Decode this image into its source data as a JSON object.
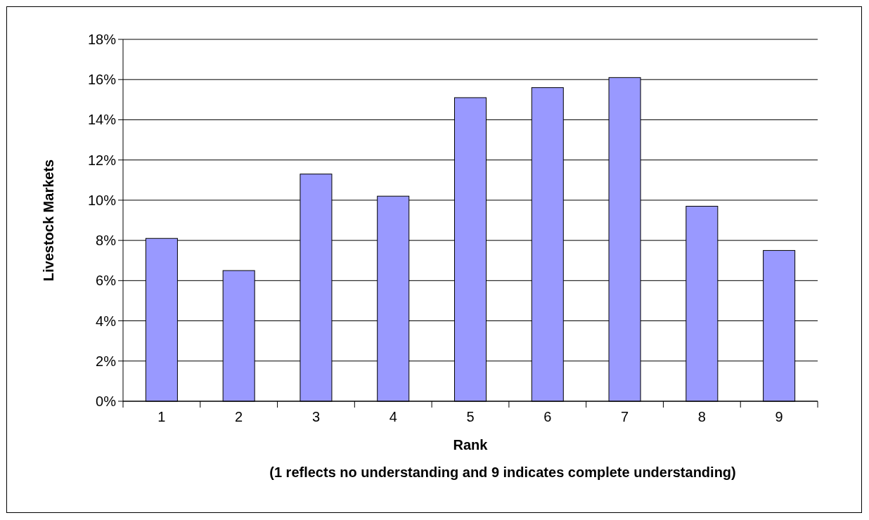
{
  "chart_data": {
    "type": "bar",
    "categories": [
      "1",
      "2",
      "3",
      "4",
      "5",
      "6",
      "7",
      "8",
      "9"
    ],
    "values": [
      8.1,
      6.5,
      11.3,
      10.2,
      15.1,
      15.6,
      16.1,
      9.7,
      7.5
    ],
    "color": "#9999ff",
    "ylabel": "Livestock Markets",
    "xlabel": "Rank",
    "annotations": [
      "(1 reflects no understanding and 9 indicates complete understanding)"
    ],
    "ylim": [
      0,
      18
    ],
    "yticks": [
      {
        "value": 0,
        "label": "0%"
      },
      {
        "value": 2,
        "label": "2%"
      },
      {
        "value": 4,
        "label": "4%"
      },
      {
        "value": 6,
        "label": "6%"
      },
      {
        "value": 8,
        "label": "8%"
      },
      {
        "value": 10,
        "label": "10%"
      },
      {
        "value": 12,
        "label": "12%"
      },
      {
        "value": 14,
        "label": "14%"
      },
      {
        "value": 16,
        "label": "16%"
      },
      {
        "value": 18,
        "label": "18%"
      }
    ],
    "grid": "y"
  }
}
